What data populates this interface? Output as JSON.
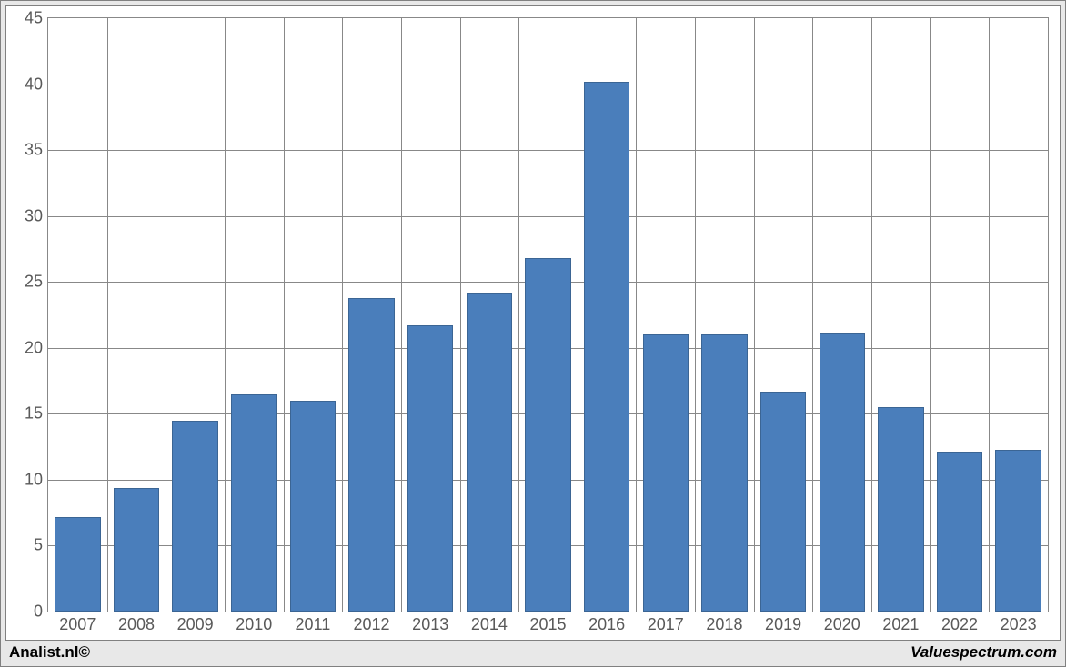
{
  "chart": {
    "type": "bar",
    "categories": [
      "2007",
      "2008",
      "2009",
      "2010",
      "2011",
      "2012",
      "2013",
      "2014",
      "2015",
      "2016",
      "2017",
      "2018",
      "2019",
      "2020",
      "2021",
      "2022",
      "2023"
    ],
    "values": [
      7.2,
      9.4,
      14.5,
      16.5,
      16.0,
      23.8,
      21.7,
      24.2,
      26.8,
      40.2,
      21.0,
      21.0,
      16.7,
      21.1,
      15.5,
      12.1,
      12.3
    ],
    "ylim": [
      0,
      45
    ],
    "ytick_step": 5,
    "yticks": [
      "0",
      "5",
      "10",
      "15",
      "20",
      "25",
      "30",
      "35",
      "40",
      "45"
    ],
    "bar_color": "#4a7ebb",
    "bar_border": "#3b6594",
    "grid_color": "#888888",
    "background_color": "#ffffff",
    "outer_background": "#e8e8e8",
    "tick_font_color": "#595959",
    "tick_fontsize": 18,
    "bar_width_ratio": 0.78
  },
  "footer": {
    "left": "Analist.nl©",
    "right": "Valuespectrum.com"
  }
}
